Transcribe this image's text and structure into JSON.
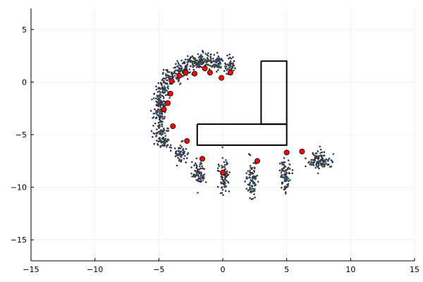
{
  "chart_data": {
    "type": "scatter",
    "title": "",
    "xlabel": "",
    "ylabel": "",
    "xlim": [
      -15,
      15
    ],
    "ylim": [
      -17,
      7
    ],
    "xticks": [
      -15,
      -10,
      -5,
      0,
      5,
      10,
      15
    ],
    "yticks": [
      -15,
      -10,
      -5,
      0,
      5
    ],
    "grid": true,
    "legend": "none",
    "colors": {
      "waypoint": "#ff0000",
      "obstacle": "#000000",
      "samples": [
        "#3b1f4a",
        "#2a3f5f",
        "#1f4b5a",
        "#2b5c3a",
        "#4a3a22",
        "#5a2a2a",
        "#1f3f6f",
        "#3a5a3a",
        "#4b2a5c",
        "#2a4a6a"
      ]
    },
    "waypoints": [
      {
        "x": 0.6,
        "y": 0.9
      },
      {
        "x": -0.1,
        "y": 0.4
      },
      {
        "x": -1.0,
        "y": 0.9
      },
      {
        "x": -1.4,
        "y": 1.3
      },
      {
        "x": -2.2,
        "y": 0.8
      },
      {
        "x": -2.9,
        "y": 0.9
      },
      {
        "x": -3.4,
        "y": 0.6
      },
      {
        "x": -4.0,
        "y": 0.1
      },
      {
        "x": -4.1,
        "y": -1.1
      },
      {
        "x": -4.3,
        "y": -2.0
      },
      {
        "x": -4.6,
        "y": -2.6
      },
      {
        "x": -3.9,
        "y": -4.2
      },
      {
        "x": -2.8,
        "y": -5.6
      },
      {
        "x": -1.6,
        "y": -7.3
      },
      {
        "x": 0.0,
        "y": -8.6
      },
      {
        "x": 2.7,
        "y": -7.5
      },
      {
        "x": 5.0,
        "y": -6.7
      },
      {
        "x": 6.2,
        "y": -6.6
      }
    ],
    "sample_clusters": [
      {
        "cx": 0.6,
        "cy": 1.6,
        "sx": 0.3,
        "sy": 0.6,
        "n": 40
      },
      {
        "cx": -0.5,
        "cy": 1.9,
        "sx": 0.5,
        "sy": 0.5,
        "n": 70
      },
      {
        "cx": -1.5,
        "cy": 2.0,
        "sx": 0.5,
        "sy": 0.5,
        "n": 70
      },
      {
        "cx": -2.5,
        "cy": 1.8,
        "sx": 0.5,
        "sy": 0.5,
        "n": 60
      },
      {
        "cx": -3.3,
        "cy": 1.2,
        "sx": 0.5,
        "sy": 0.5,
        "n": 60
      },
      {
        "cx": -4.0,
        "cy": 0.6,
        "sx": 0.5,
        "sy": 0.5,
        "n": 55
      },
      {
        "cx": -4.6,
        "cy": -0.5,
        "sx": 0.4,
        "sy": 0.6,
        "n": 55
      },
      {
        "cx": -4.9,
        "cy": -1.7,
        "sx": 0.4,
        "sy": 0.6,
        "n": 55
      },
      {
        "cx": -5.0,
        "cy": -3.0,
        "sx": 0.4,
        "sy": 0.7,
        "n": 55
      },
      {
        "cx": -4.8,
        "cy": -4.5,
        "sx": 0.4,
        "sy": 0.7,
        "n": 55
      },
      {
        "cx": -4.6,
        "cy": -5.8,
        "sx": 0.4,
        "sy": 0.5,
        "n": 45
      },
      {
        "cx": -3.3,
        "cy": -6.9,
        "sx": 0.4,
        "sy": 0.7,
        "n": 60
      },
      {
        "cx": -1.9,
        "cy": -8.6,
        "sx": 0.35,
        "sy": 0.9,
        "n": 70
      },
      {
        "cx": 0.1,
        "cy": -9.0,
        "sx": 0.3,
        "sy": 1.3,
        "n": 80
      },
      {
        "cx": 2.3,
        "cy": -9.3,
        "sx": 0.3,
        "sy": 1.3,
        "n": 90
      },
      {
        "cx": 4.9,
        "cy": -8.8,
        "sx": 0.35,
        "sy": 1.2,
        "n": 85
      },
      {
        "cx": 7.6,
        "cy": -7.5,
        "sx": 0.6,
        "sy": 0.6,
        "n": 110
      }
    ],
    "obstacles": [
      {
        "x": [
          -2,
          5,
          5,
          -2,
          -2
        ],
        "y": [
          -4,
          -4,
          -6,
          -6,
          -4
        ]
      },
      {
        "x": [
          3,
          5,
          5,
          3,
          3
        ],
        "y": [
          2,
          2,
          -4,
          -4,
          2
        ]
      }
    ]
  }
}
